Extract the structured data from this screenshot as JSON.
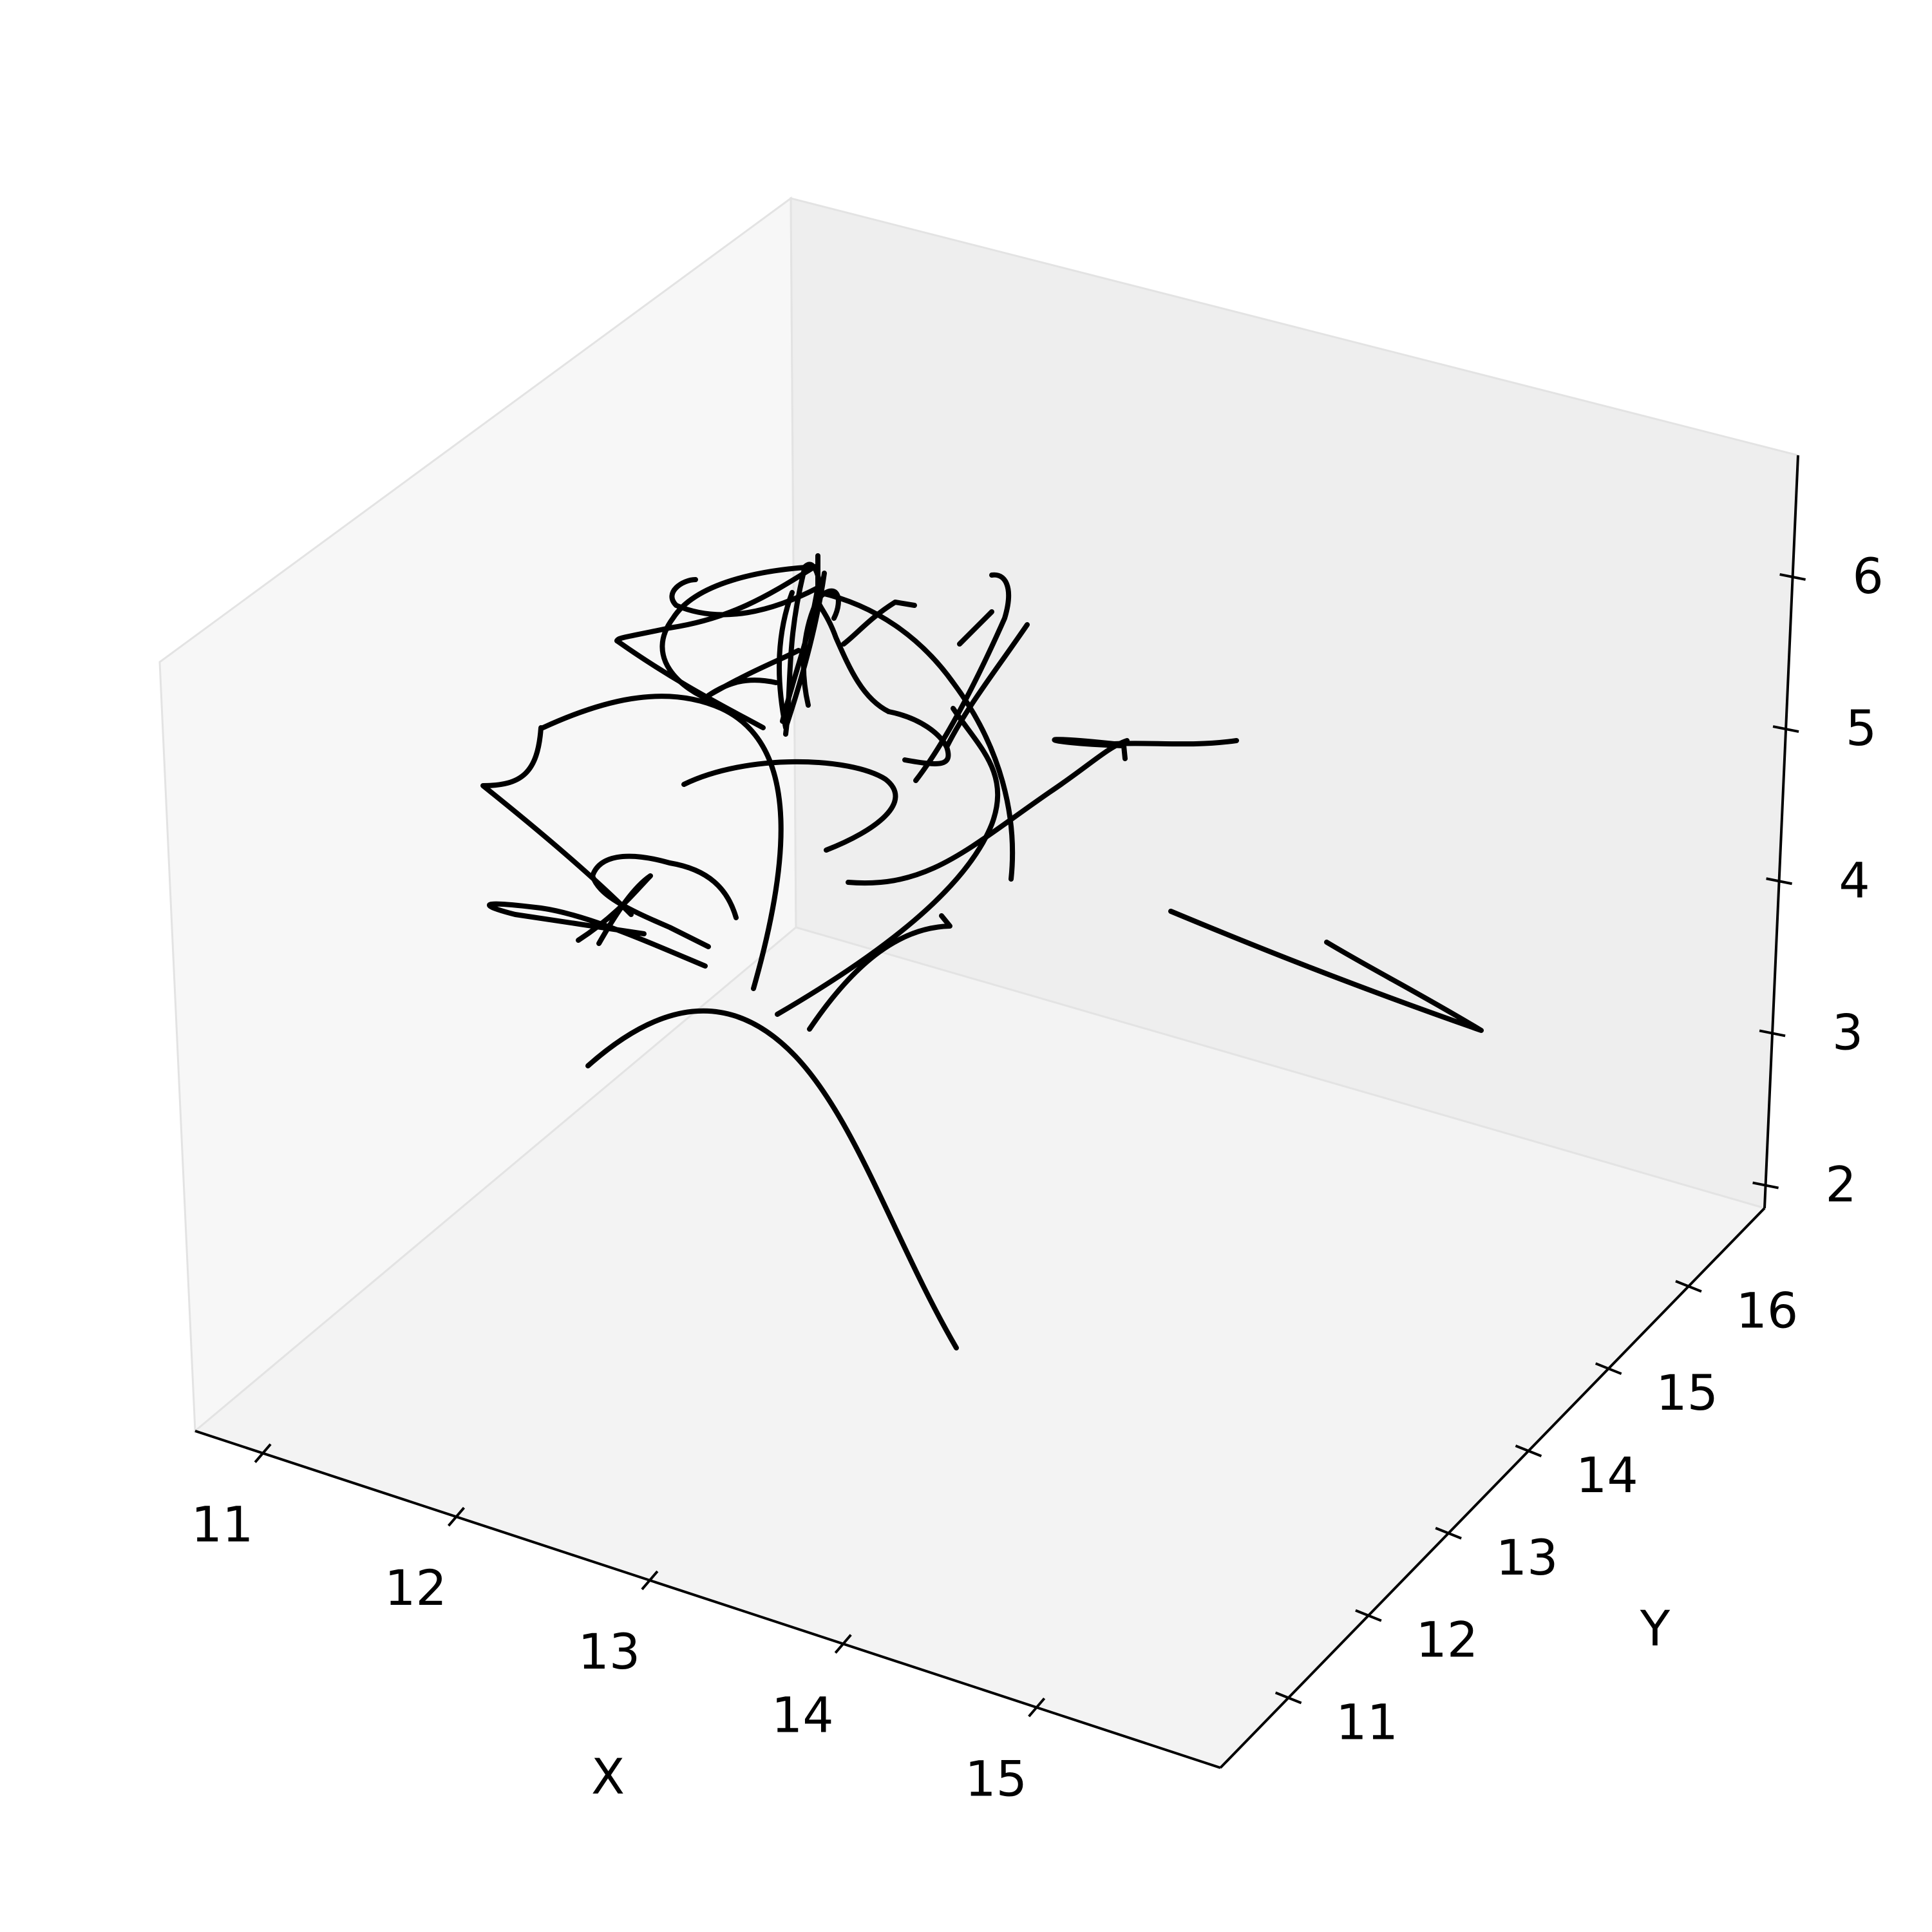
{
  "chart_data": {
    "type": "line",
    "projection": "3d",
    "title": "",
    "xlabel": "X",
    "ylabel": "Y",
    "zlabel": "",
    "x_ticks": [
      "11",
      "12",
      "13",
      "14",
      "15"
    ],
    "y_ticks": [
      "11",
      "12",
      "13",
      "14",
      "15",
      "16"
    ],
    "z_ticks": [
      "2",
      "3",
      "4",
      "5",
      "6"
    ],
    "xlim": [
      10.65,
      15.95
    ],
    "ylim": [
      10.15,
      16.95
    ],
    "zlim": [
      1.85,
      6.8
    ],
    "grid": false,
    "legend": "none",
    "line_color": "#000000",
    "pane_colors": {
      "floor": "#f3f3f3",
      "back": "#eeeeee",
      "side": "#f7f7f7",
      "edge": "#e3e3e3"
    },
    "series_count": 27
  }
}
